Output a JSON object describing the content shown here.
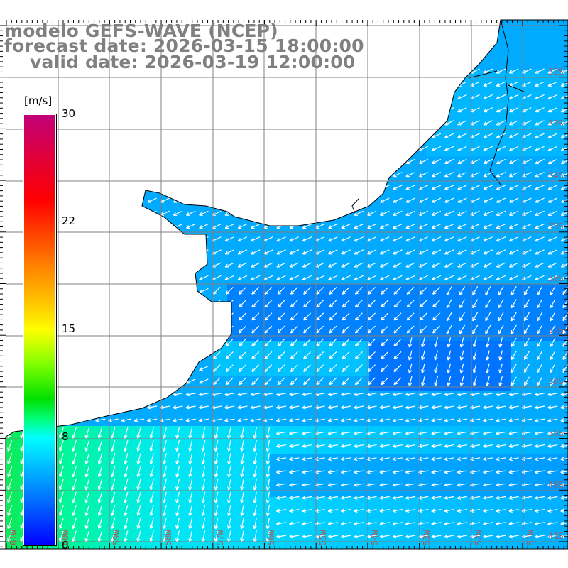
{
  "title": {
    "model": "modelo GEFS-WAVE (NCEP)",
    "forecast": "forecast date: 2026-03-15 18:00:00",
    "valid": "valid date: 2026-03-19 12:00:00"
  },
  "colorbar": {
    "unit": "[m/s]",
    "ticks": [
      "30",
      "22",
      "15",
      "8",
      "0"
    ],
    "colors": [
      "#c0007a",
      "#ff0000",
      "#ffff00",
      "#00ffff",
      "#0000ff"
    ]
  },
  "lon_labels": [
    "61W",
    "60W",
    "59W",
    "58W",
    "57W",
    "56W",
    "55W",
    "54W",
    "53W",
    "52W",
    "51W"
  ],
  "lat_labels": [
    "32S",
    "33S",
    "34S",
    "35S",
    "36S",
    "37S",
    "38S",
    "39S",
    "40S",
    "41S"
  ],
  "colors": {
    "ocean": "#00aaff",
    "deep": "#0070ff",
    "light": "#00e0ff",
    "land": "#ffffff",
    "grid": "#808080"
  }
}
